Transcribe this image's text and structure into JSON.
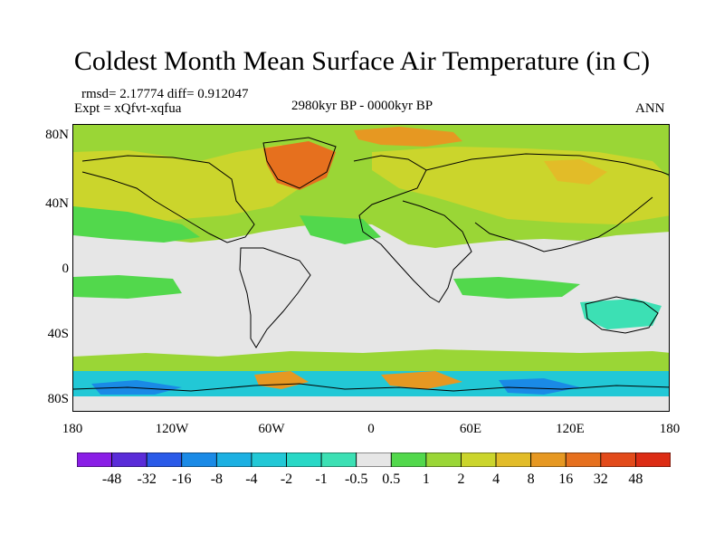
{
  "title": "Coldest Month Mean Surface Air Temperature (in C)",
  "stats": "rmsd= 2.17774  diff= 0.912047",
  "experiment": "Expt = xQfvt-xqfua",
  "period": "2980kyr BP - 0000kyr BP",
  "season": "ANN",
  "lat_labels": [
    "80N",
    "40N",
    "0",
    "40S",
    "80S"
  ],
  "lon_labels": [
    "180",
    "120W",
    "60W",
    "0",
    "60E",
    "120E",
    "180"
  ],
  "colorbar": {
    "labels": [
      "-48",
      "-32",
      "-16",
      "-8",
      "-4",
      "-2",
      "-1",
      "-0.5",
      "0.5",
      "1",
      "2",
      "4",
      "8",
      "16",
      "32",
      "48"
    ],
    "colors": [
      "#8a1ee6",
      "#5a2cd8",
      "#2a5ae8",
      "#1a8ae6",
      "#1cb0e2",
      "#22c8d6",
      "#28d8c6",
      "#3ce0b4",
      "#e6e6e6",
      "#52d84c",
      "#9ad636",
      "#cbd52c",
      "#e2bc28",
      "#e69822",
      "#e6701e",
      "#e24a1a",
      "#dc2c14"
    ]
  },
  "map_colors": {
    "neutral": "#e6e6e6",
    "warm_light": "#9ad636",
    "warm_mid": "#cbd52c",
    "warm_high": "#e2bc28",
    "warm_strong": "#e69822",
    "warm_hot": "#e6701e",
    "green": "#52d84c",
    "cool": "#3ce0b4",
    "cool_mid": "#22c8d6",
    "cool_strong": "#1a8ae6",
    "blue": "#2a5ae8"
  }
}
